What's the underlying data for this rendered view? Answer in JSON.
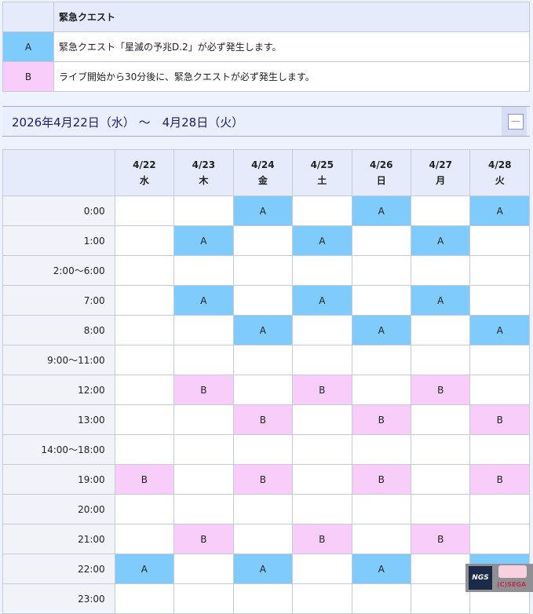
{
  "legend": {
    "header": "緊急クエスト",
    "rows": [
      {
        "key": "A",
        "text": "緊急クエスト「星滅の予兆D.2」が必ず発生します。"
      },
      {
        "key": "B",
        "text": "ライブ開始から30分後に、緊急クエストが必ず発生します。"
      }
    ]
  },
  "range": {
    "title": "2026年4月22日（水） ～　4月28日（火）",
    "collapse_icon": "minus-icon"
  },
  "colors": {
    "A": "#7fcbfb",
    "B": "#f9cdfa"
  },
  "schedule": {
    "days": [
      {
        "date": "4/22",
        "dow": "水"
      },
      {
        "date": "4/23",
        "dow": "木"
      },
      {
        "date": "4/24",
        "dow": "金"
      },
      {
        "date": "4/25",
        "dow": "土"
      },
      {
        "date": "4/26",
        "dow": "日"
      },
      {
        "date": "4/27",
        "dow": "月"
      },
      {
        "date": "4/28",
        "dow": "火"
      }
    ],
    "rows": [
      {
        "time": "0:00",
        "cells": [
          "",
          "",
          "A",
          "",
          "A",
          "",
          "A"
        ]
      },
      {
        "time": "1:00",
        "cells": [
          "",
          "A",
          "",
          "A",
          "",
          "A",
          ""
        ]
      },
      {
        "time": "2:00～6:00",
        "cells": [
          "",
          "",
          "",
          "",
          "",
          "",
          ""
        ]
      },
      {
        "time": "7:00",
        "cells": [
          "",
          "A",
          "",
          "A",
          "",
          "A",
          ""
        ]
      },
      {
        "time": "8:00",
        "cells": [
          "",
          "",
          "A",
          "",
          "A",
          "",
          "A"
        ]
      },
      {
        "time": "9:00～11:00",
        "cells": [
          "",
          "",
          "",
          "",
          "",
          "",
          ""
        ]
      },
      {
        "time": "12:00",
        "cells": [
          "",
          "B",
          "",
          "B",
          "",
          "B",
          ""
        ]
      },
      {
        "time": "13:00",
        "cells": [
          "",
          "",
          "B",
          "",
          "B",
          "",
          "B"
        ]
      },
      {
        "time": "14:00～18:00",
        "cells": [
          "",
          "",
          "",
          "",
          "",
          "",
          ""
        ]
      },
      {
        "time": "19:00",
        "cells": [
          "B",
          "",
          "B",
          "",
          "B",
          "",
          "B"
        ]
      },
      {
        "time": "20:00",
        "cells": [
          "",
          "",
          "",
          "",
          "",
          "",
          ""
        ]
      },
      {
        "time": "21:00",
        "cells": [
          "",
          "B",
          "",
          "B",
          "",
          "B",
          ""
        ]
      },
      {
        "time": "22:00",
        "cells": [
          "A",
          "",
          "A",
          "",
          "A",
          "",
          "A"
        ]
      },
      {
        "time": "23:00",
        "cells": [
          "",
          "",
          "",
          "",
          "",
          "",
          ""
        ]
      }
    ]
  },
  "logo": {
    "ngs": "NGS",
    "copyright": "(C)SEGA"
  }
}
